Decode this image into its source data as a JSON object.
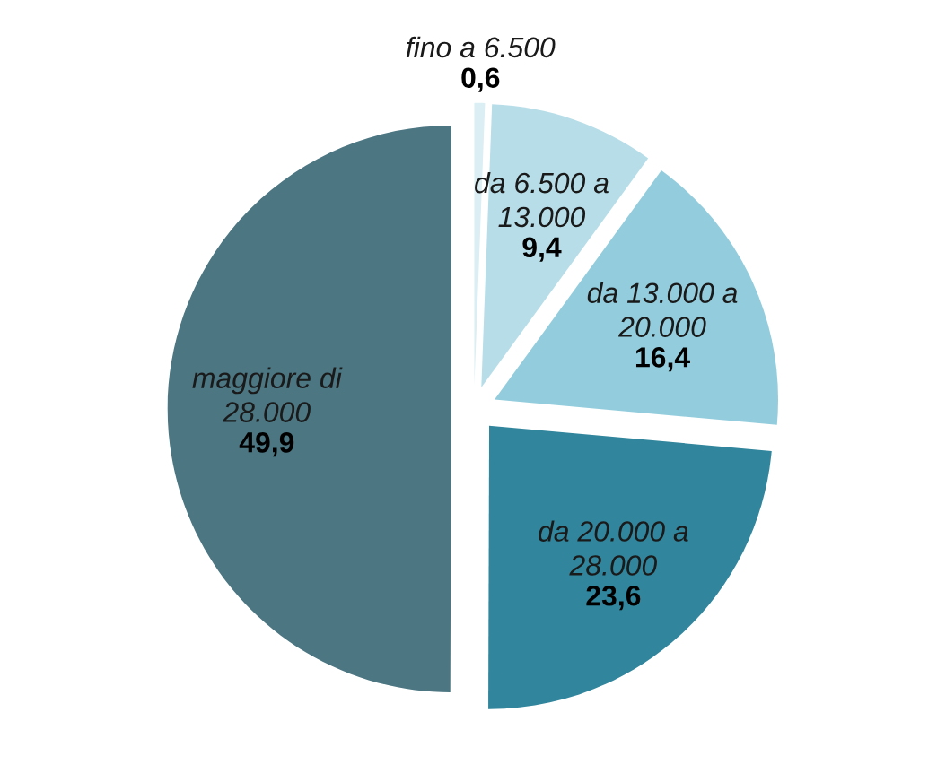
{
  "chart_data": {
    "type": "pie",
    "categories": [
      "fino a 6.500",
      "da 6.500 a\n13.000",
      "da 13.000 a\n20.000",
      "da 20.000 a\n28.000",
      "maggiore di\n28.000"
    ],
    "values": [
      0.6,
      9.4,
      16.4,
      23.6,
      49.9
    ],
    "colors": [
      "#daeef3",
      "#b7dee8",
      "#93cddd",
      "#31859c",
      "#4b7682"
    ],
    "value_labels": [
      "0,6",
      "9,4",
      "16,4",
      "23,6",
      "49,9"
    ]
  }
}
